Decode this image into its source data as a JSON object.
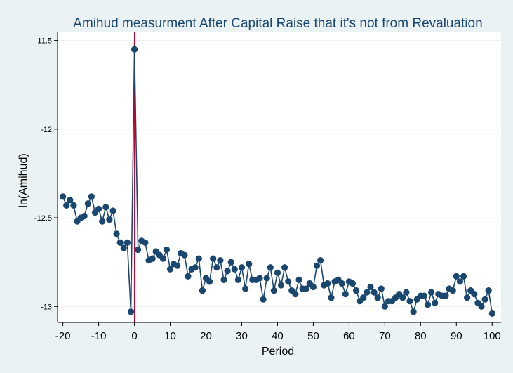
{
  "chart_data": {
    "type": "line",
    "title": "Amihud measurment  After Capital Raise that it's not from Revaluation",
    "xlabel": "Period",
    "ylabel": "ln(Amihud)",
    "xlim": [
      -21.5,
      102.5
    ],
    "ylim": [
      -13.09,
      -11.45
    ],
    "x_ticks": [
      -20,
      -10,
      0,
      10,
      20,
      30,
      40,
      50,
      60,
      70,
      80,
      90,
      100
    ],
    "x_tick_labels": [
      "-20",
      "-10",
      "0",
      "10",
      "20",
      "30",
      "40",
      "50",
      "60",
      "70",
      "80",
      "90",
      "100"
    ],
    "y_ticks": [
      -13,
      -12.5,
      -12,
      -11.5
    ],
    "y_tick_labels": [
      "-13",
      "-12.5",
      "-12",
      "-11.5"
    ],
    "grid": true,
    "vline_x": 0,
    "series": [
      {
        "x": [
          -20,
          -19,
          -18,
          -17,
          -16,
          -15,
          -14,
          -13,
          -12,
          -11,
          -10,
          -9,
          -8,
          -7,
          -6,
          -5,
          -4,
          -3,
          -2,
          -1,
          0,
          1,
          2,
          3,
          4,
          5,
          6,
          7,
          8,
          9,
          10,
          11,
          12,
          13,
          14,
          15,
          16,
          17,
          18,
          19,
          20,
          21,
          22,
          23,
          24,
          25,
          26,
          27,
          28,
          29,
          30,
          31,
          32,
          33,
          34,
          35,
          36,
          37,
          38,
          39,
          40,
          41,
          42,
          43,
          44,
          45,
          46,
          47,
          48,
          49,
          50,
          51,
          52,
          53,
          54,
          55,
          56,
          57,
          58,
          59,
          60,
          61,
          62,
          63,
          64,
          65,
          66,
          67,
          68,
          69,
          70,
          71,
          72,
          73,
          74,
          75,
          76,
          77,
          78,
          79,
          80,
          81,
          82,
          83,
          84,
          85,
          86,
          87,
          88,
          89,
          90,
          91,
          92,
          93,
          94,
          95,
          96,
          97,
          98,
          99,
          100
        ],
        "values": [
          -12.38,
          -12.43,
          -12.4,
          -12.43,
          -12.52,
          -12.5,
          -12.49,
          -12.42,
          -12.38,
          -12.47,
          -12.45,
          -12.52,
          -12.44,
          -12.51,
          -12.46,
          -12.59,
          -12.64,
          -12.67,
          -12.64,
          -13.03,
          -11.55,
          -12.68,
          -12.63,
          -12.64,
          -12.74,
          -12.73,
          -12.69,
          -12.71,
          -12.73,
          -12.68,
          -12.79,
          -12.76,
          -12.77,
          -12.7,
          -12.71,
          -12.83,
          -12.79,
          -12.78,
          -12.73,
          -12.91,
          -12.84,
          -12.86,
          -12.73,
          -12.78,
          -12.74,
          -12.85,
          -12.8,
          -12.75,
          -12.79,
          -12.85,
          -12.78,
          -12.9,
          -12.76,
          -12.85,
          -12.85,
          -12.84,
          -12.96,
          -12.84,
          -12.78,
          -12.91,
          -12.81,
          -12.88,
          -12.78,
          -12.86,
          -12.91,
          -12.93,
          -12.85,
          -12.9,
          -12.9,
          -12.87,
          -12.89,
          -12.77,
          -12.74,
          -12.88,
          -12.87,
          -12.95,
          -12.86,
          -12.85,
          -12.87,
          -12.93,
          -12.86,
          -12.87,
          -12.91,
          -12.97,
          -12.95,
          -12.92,
          -12.89,
          -12.92,
          -12.95,
          -12.9,
          -13.0,
          -12.97,
          -12.97,
          -12.95,
          -12.93,
          -12.95,
          -12.92,
          -12.97,
          -13.03,
          -12.96,
          -12.94,
          -12.94,
          -12.99,
          -12.92,
          -12.98,
          -12.93,
          -12.94,
          -12.94,
          -12.9,
          -12.91,
          -12.83,
          -12.86,
          -12.83,
          -12.95,
          -12.91,
          -12.93,
          -12.98,
          -13.0,
          -12.96,
          -12.91,
          -13.04
        ]
      }
    ],
    "colors": {
      "line": "#1a476f",
      "vline": "#c10534",
      "plot_background": "#ffffff",
      "outer_background": "#eaf2f3",
      "grid": "#eaf2f3"
    }
  }
}
